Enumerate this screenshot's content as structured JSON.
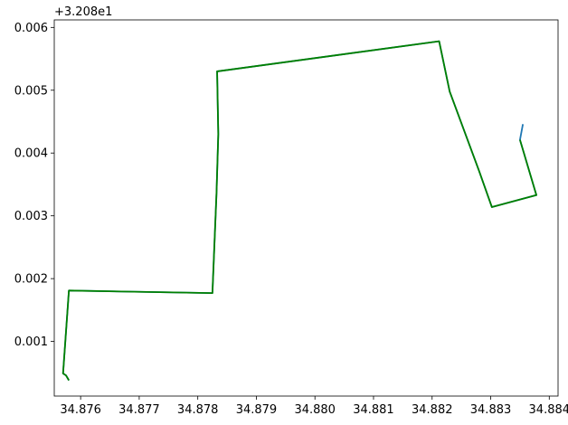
{
  "chart_data": {
    "type": "line",
    "title": "",
    "xlabel": "",
    "ylabel": "",
    "offset_text": "+3.208e1",
    "xlim": [
      34.87555,
      34.88415
    ],
    "ylim": [
      0.00013,
      0.00612
    ],
    "xticks": [
      34.876,
      34.877,
      34.878,
      34.879,
      34.88,
      34.881,
      34.882,
      34.883,
      34.884
    ],
    "xtick_labels": [
      "34.876",
      "34.877",
      "34.878",
      "34.879",
      "34.880",
      "34.881",
      "34.882",
      "34.883",
      "34.884"
    ],
    "yticks": [
      0.001,
      0.002,
      0.003,
      0.004,
      0.005,
      0.006
    ],
    "ytick_labels": [
      "0.001",
      "0.002",
      "0.003",
      "0.004",
      "0.005",
      "0.006"
    ],
    "grid": false,
    "legend": false,
    "series": [
      {
        "color": "#1f77b4",
        "x": [
          34.8758,
          34.87575,
          34.8757,
          34.8758,
          34.87825,
          34.87832,
          34.87835,
          34.87833,
          34.88212,
          34.8823,
          34.8828,
          34.88302,
          34.88378,
          34.8835,
          34.88355
        ],
        "y": [
          0.00038,
          0.00046,
          0.00049,
          0.00181,
          0.00177,
          0.00337,
          0.0043,
          0.0053,
          0.00578,
          0.00498,
          0.00372,
          0.00314,
          0.00333,
          0.00421,
          0.00446
        ]
      },
      {
        "color": "#008000",
        "x": [
          34.8758,
          34.87575,
          34.8757,
          34.8758,
          34.87825,
          34.87832,
          34.87835,
          34.87833,
          34.88212,
          34.8823,
          34.8828,
          34.88302,
          34.88378,
          34.8835
        ],
        "y": [
          0.00038,
          0.00046,
          0.00049,
          0.00181,
          0.00177,
          0.00337,
          0.0043,
          0.0053,
          0.00578,
          0.00498,
          0.00372,
          0.00314,
          0.00333,
          0.00421
        ]
      }
    ]
  }
}
